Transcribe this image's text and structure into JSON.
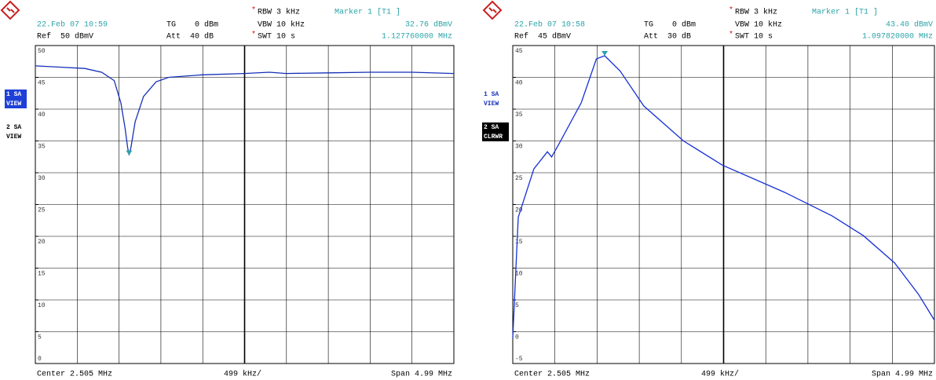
{
  "chart_data": [
    {
      "type": "line",
      "header": {
        "date": "22.Feb 07 10:59",
        "ref": "Ref  50 dBmV",
        "tg": "TG",
        "tg_level": "0 dBm",
        "att": "Att  40 dB",
        "rbw_flag": "*",
        "rbw": "RBW 3 kHz",
        "vbw": "VBW 10 kHz",
        "swt_flag": "*",
        "swt": "SWT 10 s",
        "marker_title": "Marker 1 [T1 ]"
      },
      "marker": {
        "x": 1.12776,
        "y": 32.76,
        "label": "32.76 dBmV",
        "x_label": "1.127760000 MHz"
      },
      "footer": {
        "center": "Center 2.505 MHz",
        "division": "499 kHz/",
        "span": "Span 4.99 MHz"
      },
      "side_labels": [
        {
          "lines": [
            "1 SA",
            "VIEW"
          ],
          "highlight": "#1d3fd8"
        },
        {
          "lines": [
            "2 SA",
            "VIEW"
          ]
        }
      ],
      "color": "#1530b8",
      "x": [
        0.01,
        0.3,
        0.6,
        0.8,
        0.95,
        1.03,
        1.08,
        1.11,
        1.128,
        1.15,
        1.2,
        1.3,
        1.45,
        1.6,
        2.0,
        2.5,
        2.8,
        3.0,
        3.5,
        4.0,
        4.5,
        5.0
      ],
      "values": [
        46.8,
        46.6,
        46.4,
        45.8,
        44.5,
        41,
        37,
        34,
        32.76,
        34,
        38,
        42,
        44.3,
        45,
        45.4,
        45.6,
        45.8,
        45.6,
        45.7,
        45.8,
        45.8,
        45.6
      ],
      "xlim": [
        0.01,
        5.0
      ],
      "ylim": [
        0,
        50
      ],
      "yticks": [
        50,
        45,
        40,
        35,
        30,
        25,
        20,
        15,
        10,
        5,
        0
      ]
    },
    {
      "type": "line",
      "header": {
        "date": "22.Feb 07 10:58",
        "ref": "Ref  45 dBmV",
        "tg": "TG",
        "tg_level": "0 dBm",
        "att": "Att  30 dB",
        "rbw_flag": "*",
        "rbw": "RBW 3 kHz",
        "vbw": "VBW 10 kHz",
        "swt_flag": "*",
        "swt": "SWT 10 s",
        "marker_title": "Marker 1 [T1 ]"
      },
      "marker": {
        "x": 1.09782,
        "y": 43.4,
        "label": "43.40 dBmV",
        "x_label": "1.097820000 MHz"
      },
      "footer": {
        "center": "Center 2.505 MHz",
        "division": "499 kHz/",
        "span": "Span 4.99 MHz"
      },
      "side_labels": [
        {
          "lines": [
            "1 SA",
            "VIEW"
          ]
        },
        {
          "lines": [
            "2 SA",
            "CLRWR"
          ],
          "highlight": "#000000"
        }
      ],
      "color": "#1530d8",
      "x": [
        0.01,
        0.03,
        0.075,
        0.26,
        0.42,
        0.47,
        0.56,
        0.82,
        1.0,
        1.098,
        1.28,
        1.56,
        2.03,
        2.49,
        3.23,
        3.79,
        4.16,
        4.53,
        4.81,
        5.0
      ],
      "values": [
        -1,
        5,
        18,
        25.6,
        28.3,
        27.5,
        29.6,
        36,
        42.9,
        43.4,
        41,
        35.5,
        30,
        26.2,
        21.9,
        18.2,
        15.1,
        10.8,
        5.9,
        1.8
      ],
      "xlim": [
        0.01,
        5.0
      ],
      "ylim": [
        -5,
        45
      ],
      "yticks": [
        45,
        40,
        35,
        30,
        25,
        20,
        15,
        10,
        5,
        0,
        -5
      ]
    }
  ]
}
